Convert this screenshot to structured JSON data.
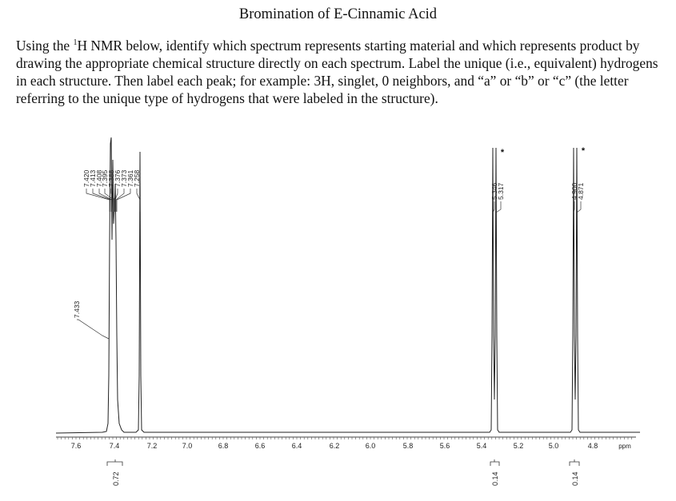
{
  "title": "Bromination of E-Cinnamic Acid",
  "instructions": {
    "part1": "Using the ",
    "superscript": "1",
    "part2": "H NMR below, identify which spectrum represents starting material and which represents product by drawing the appropriate chemical structure directly on each spectrum. Label the unique (i.e., equivalent) hydrogens in each structure. Then label each peak; for example: 3H, singlet, 0 neighbors, and “a” or “b” or “c” (the letter referring to the unique type of hydrogens that were labeled in the structure)."
  },
  "spectrum": {
    "unit_label": "ppm",
    "tick_labels": [
      "7.6",
      "7.4",
      "7.2",
      "7.0",
      "6.8",
      "6.6",
      "6.4",
      "6.2",
      "6.0",
      "5.8",
      "5.6",
      "5.4",
      "5.2",
      "5.0",
      "4.8"
    ],
    "peak_labels_aromatic": [
      "7.420",
      "7.413",
      "7.408",
      "7.395",
      "7.388",
      "7.376",
      "7.373",
      "7.361",
      "7.258"
    ],
    "peak_label_side": "7.433",
    "peak_labels_vinyl1": [
      "5.346",
      "5.317"
    ],
    "peak_labels_vinyl2": [
      "4.900",
      "4.871"
    ],
    "integrals": [
      "0.72",
      "0.14",
      "0.14"
    ],
    "star_marker": "*"
  }
}
